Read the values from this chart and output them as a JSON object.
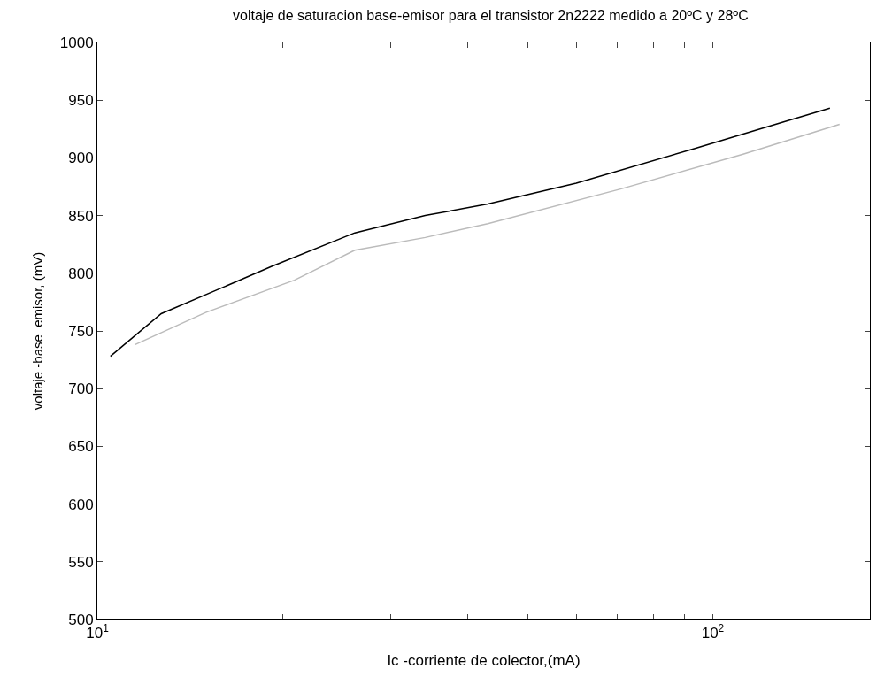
{
  "chart_data": {
    "type": "line",
    "title": "voltaje de saturacion base-emisor para el transistor 2n2222 medido a 20ºC y 28ºC",
    "xlabel": "Ic -corriente de colector,(mA)",
    "ylabel": "voltaje -base  emisor, (mV)",
    "log": "x",
    "marker": "none",
    "line_style": "solid",
    "xlim": [
      10,
      180
    ],
    "ylim": [
      500,
      1000
    ],
    "xticks": [
      {
        "value": 10,
        "label": "10$^{1}$"
      },
      {
        "value": 20,
        "label": null
      },
      {
        "value": 30,
        "label": null
      },
      {
        "value": 40,
        "label": null
      },
      {
        "value": 50,
        "label": null
      },
      {
        "value": 60,
        "label": null
      },
      {
        "value": 70,
        "label": null
      },
      {
        "value": 80,
        "label": null
      },
      {
        "value": 90,
        "label": null
      },
      {
        "value": 100,
        "label": "10$^{2}$"
      }
    ],
    "yticks": [
      500,
      550,
      600,
      650,
      700,
      750,
      800,
      850,
      900,
      950,
      1000
    ],
    "series": [
      {
        "color": "#000000",
        "x": [
          10.5,
          12.7,
          15.4,
          19.2,
          26.2,
          34.1,
          43.1,
          60,
          93.3,
          130,
          155
        ],
        "values": [
          728,
          765,
          784,
          806,
          835,
          850,
          860,
          878,
          908,
          931,
          943
        ]
      },
      {
        "color": "#bbbbbb",
        "x": [
          11.5,
          15,
          20.9,
          26.2,
          34.1,
          43.1,
          70.8,
          111.7,
          160.7
        ],
        "values": [
          738,
          766,
          794,
          820,
          831,
          843,
          873,
          903,
          929
        ]
      }
    ]
  }
}
